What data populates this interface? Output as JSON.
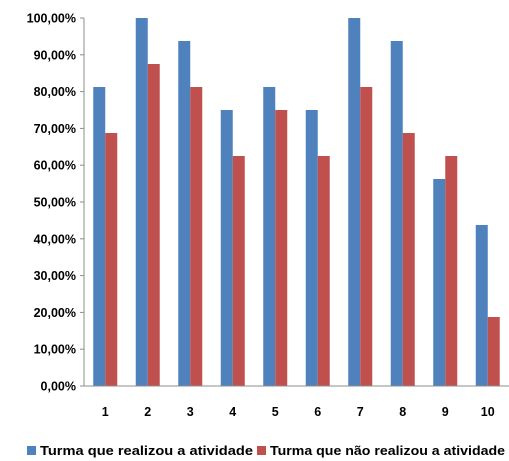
{
  "chart_data": {
    "type": "bar",
    "categories": [
      "1",
      "2",
      "3",
      "4",
      "5",
      "6",
      "7",
      "8",
      "9",
      "10"
    ],
    "series": [
      {
        "name": "Turma que  realizou a atividade",
        "color": "#4F81BD",
        "values": [
          81.25,
          100,
          93.75,
          75,
          81.25,
          75,
          100,
          93.75,
          56.25,
          43.75
        ]
      },
      {
        "name": "Turma que não realizou a atividade",
        "color": "#C0504D",
        "values": [
          68.75,
          87.5,
          81.25,
          62.5,
          75,
          62.5,
          81.25,
          68.75,
          62.5,
          18.75
        ]
      }
    ],
    "y_ticks": [
      "0,00%",
      "10,00%",
      "20,00%",
      "30,00%",
      "40,00%",
      "50,00%",
      "60,00%",
      "70,00%",
      "80,00%",
      "90,00%",
      "100,00%"
    ],
    "ylim": [
      0,
      100
    ],
    "grid": false,
    "legend_position": "bottom"
  }
}
